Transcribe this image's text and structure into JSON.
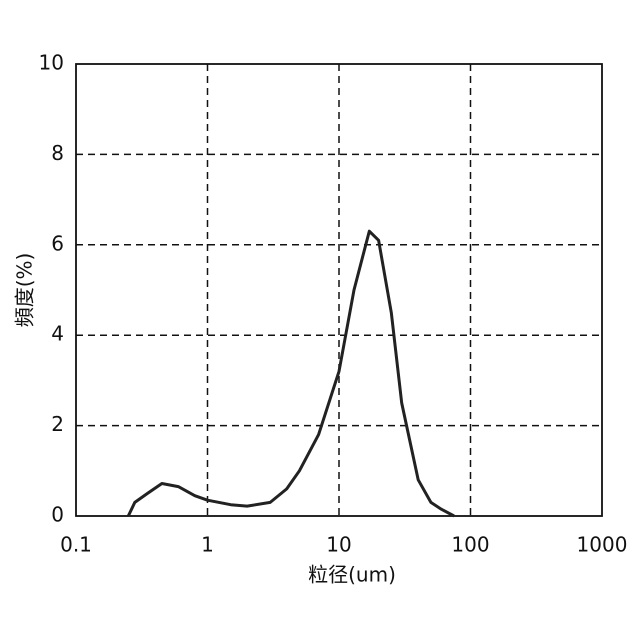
{
  "chart_data": {
    "type": "line",
    "xlabel": "粒径(um)",
    "ylabel": "頻度(%)",
    "xscale": "log",
    "grid": true,
    "color": "#222222",
    "x": [
      0.25,
      0.28,
      0.35,
      0.45,
      0.6,
      0.8,
      1.0,
      1.5,
      2.0,
      3.0,
      4.0,
      5.0,
      7.0,
      10,
      13,
      17,
      20,
      25,
      30,
      40,
      50,
      60,
      75
    ],
    "values": [
      0,
      0.3,
      0.5,
      0.72,
      0.65,
      0.45,
      0.35,
      0.25,
      0.22,
      0.3,
      0.6,
      1.0,
      1.8,
      3.2,
      5.0,
      6.3,
      6.1,
      4.5,
      2.5,
      0.8,
      0.3,
      0.15,
      0
    ],
    "xlim": [
      0.1,
      1000
    ],
    "xticks": [
      0.1,
      1,
      10,
      100,
      1000
    ],
    "ylim": [
      0,
      10
    ],
    "yticks": [
      0,
      2,
      4,
      6,
      8,
      10
    ]
  }
}
